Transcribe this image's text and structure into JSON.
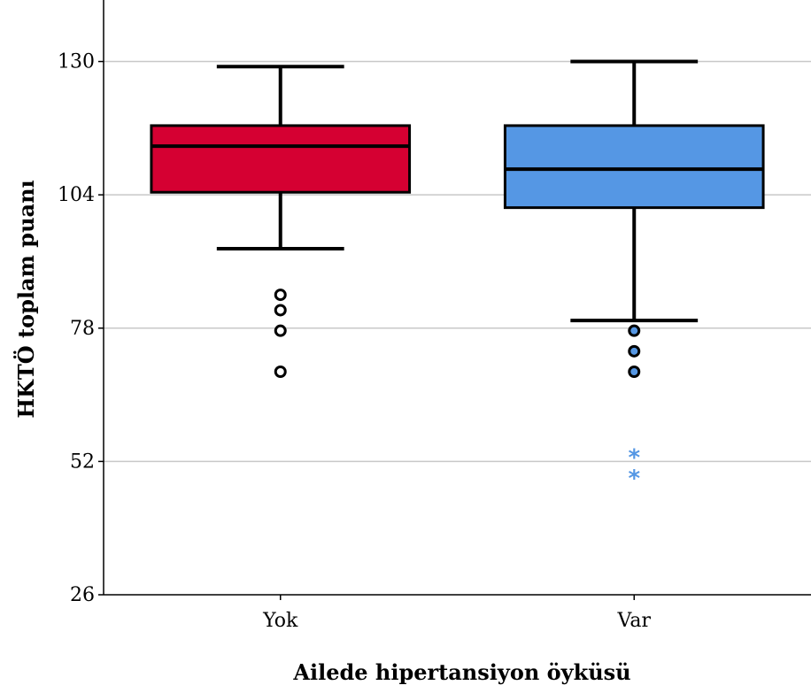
{
  "chart_data": {
    "type": "boxplot",
    "xlabel": "Ailede hipertansiyon öyküsü",
    "ylabel": "HKTÖ toplam puanı",
    "ylim": [
      26,
      142
    ],
    "yticks": [
      26,
      52,
      78,
      104,
      130
    ],
    "grid": true,
    "categories": [
      "Yok",
      "Var"
    ],
    "boxes": [
      {
        "category": "Yok",
        "color": "#D50032",
        "whisker_low": 93.5,
        "q1": 104.5,
        "median": 113.5,
        "q3": 117.5,
        "whisker_high": 129,
        "outliers": [
          84.5,
          81.5,
          77.5,
          69.5
        ],
        "extremes": []
      },
      {
        "category": "Var",
        "color": "#5597E4",
        "whisker_low": 79.5,
        "q1": 101.5,
        "median": 109,
        "q3": 117.5,
        "whisker_high": 130,
        "outliers": [
          77.5,
          73.5,
          69.5
        ],
        "extremes": [
          53,
          49
        ]
      }
    ]
  }
}
